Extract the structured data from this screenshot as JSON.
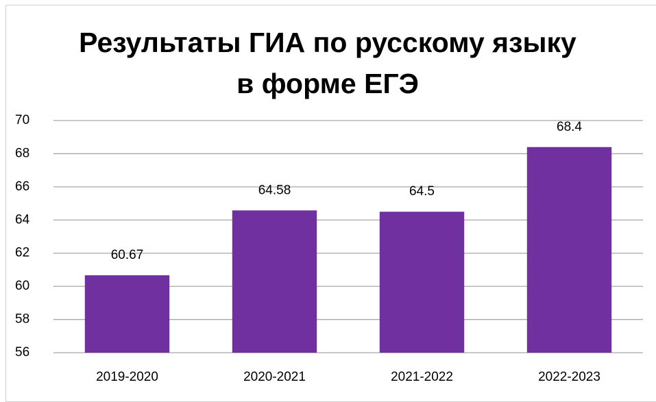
{
  "chart_data": {
    "type": "bar",
    "title": "Результаты ГИА по русскому языку в форме ЕГЭ",
    "categories": [
      "2019-2020",
      "2020-2021",
      "2021-2022",
      "2022-2023"
    ],
    "values": [
      60.67,
      64.58,
      64.5,
      68.4
    ],
    "color": "#7030a0",
    "ylim": [
      56,
      70
    ],
    "yticks": [
      56,
      58,
      60,
      62,
      64,
      66,
      68,
      70
    ],
    "grid": true,
    "data_labels": true
  }
}
